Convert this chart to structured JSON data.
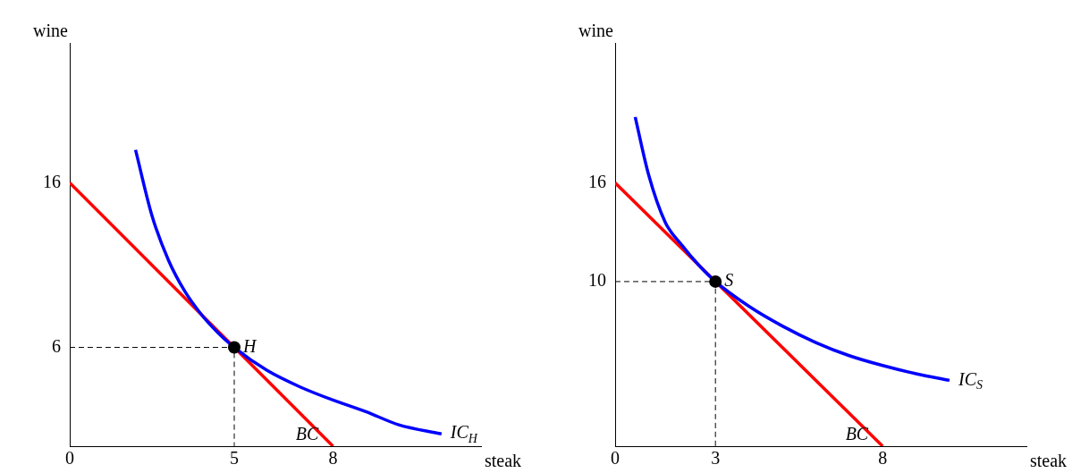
{
  "chart_data": [
    {
      "type": "line",
      "xlabel": "steak",
      "ylabel": "wine",
      "xlim": [
        0,
        12.5
      ],
      "xticks": [
        0,
        5,
        8
      ],
      "ylim": [
        0,
        24.5
      ],
      "yticks": [
        6,
        16
      ],
      "grid": false,
      "legend": false,
      "series": [
        {
          "type": "line",
          "color": "#ff0000",
          "x": [
            0,
            8
          ],
          "values": [
            16,
            0
          ]
        },
        {
          "type": "line",
          "color": "#0000ff",
          "x": [
            2,
            2.5,
            3,
            3.5,
            4,
            4.5,
            5,
            6,
            7,
            8,
            9,
            10,
            11.3
          ],
          "values": [
            18,
            14,
            11.3,
            9.4,
            8,
            6.9,
            6,
            4.6,
            3.6,
            2.8,
            2.1,
            1.3,
            0.75
          ]
        },
        {
          "type": "line",
          "color": "#000000",
          "line_style": "dashed",
          "x": [
            0,
            5,
            5
          ],
          "values": [
            6,
            6,
            0
          ]
        },
        {
          "type": "scatter",
          "color": "#000000",
          "marker": "circle",
          "x": [
            5
          ],
          "values": [
            6
          ]
        }
      ],
      "annotations": [
        {
          "text": "H",
          "x": 5,
          "y": 6
        },
        {
          "text": "BC",
          "x": 8,
          "y": 0
        },
        {
          "text": "IC$_{H}$",
          "x": 11.3,
          "y": 0.75
        }
      ]
    },
    {
      "type": "line",
      "xlabel": "steak",
      "ylabel": "wine",
      "xlim": [
        0,
        12.3
      ],
      "xticks": [
        0,
        3,
        8
      ],
      "ylim": [
        0,
        24.5
      ],
      "yticks": [
        10,
        16
      ],
      "grid": false,
      "legend": false,
      "series": [
        {
          "type": "line",
          "color": "#ff0000",
          "x": [
            0,
            8
          ],
          "values": [
            16,
            0
          ]
        },
        {
          "type": "line",
          "color": "#0000ff",
          "x": [
            0.6,
            1,
            1.5,
            2,
            2.5,
            3,
            4,
            5,
            6,
            7,
            8,
            9,
            10
          ],
          "values": [
            20,
            16.5,
            13.6,
            12.2,
            11,
            10,
            8.5,
            7.3,
            6.3,
            5.5,
            4.9,
            4.4,
            4.0
          ]
        },
        {
          "type": "line",
          "color": "#000000",
          "line_style": "dashed",
          "x": [
            0,
            3,
            3
          ],
          "values": [
            10,
            10,
            0
          ]
        },
        {
          "type": "scatter",
          "color": "#000000",
          "marker": "circle",
          "x": [
            3
          ],
          "values": [
            10
          ]
        }
      ],
      "annotations": [
        {
          "text": "S",
          "x": 3,
          "y": 10
        },
        {
          "text": "BC",
          "x": 8,
          "y": 0
        },
        {
          "text": "IC$_{S}$",
          "x": 10,
          "y": 4.0
        }
      ]
    }
  ]
}
